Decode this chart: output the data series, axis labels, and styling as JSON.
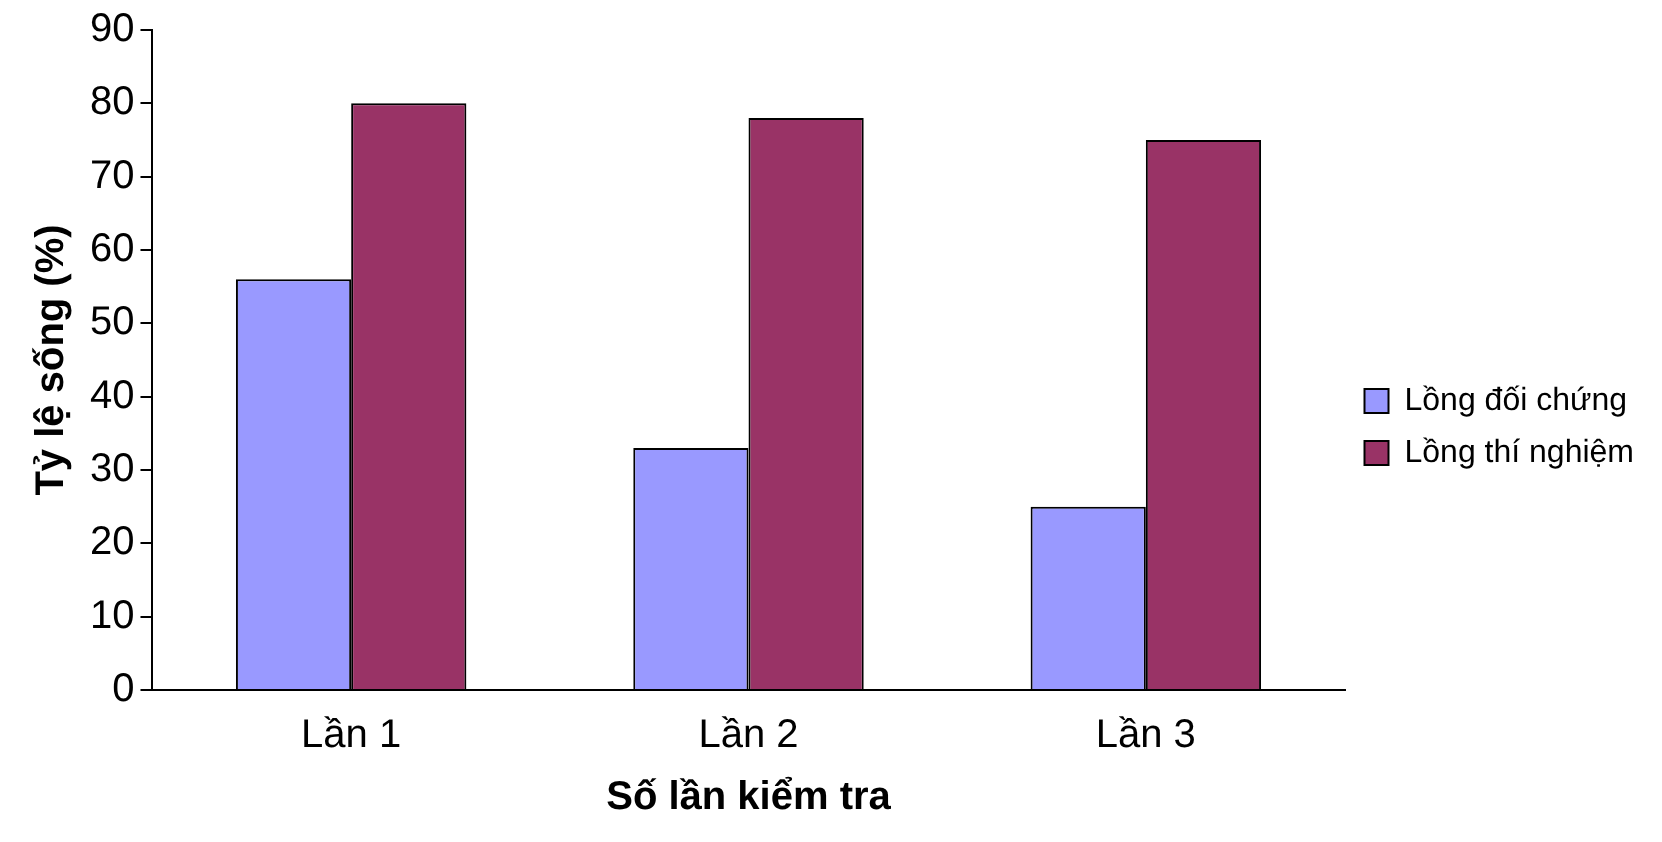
{
  "chart_data": {
    "type": "bar",
    "xlabel": "Số lần kiểm tra",
    "ylabel": "Tỷ lệ sống (%)",
    "categories": [
      "Lần 1",
      "Lần 2",
      "Lần 3"
    ],
    "series": [
      {
        "name": "Lồng đối chứng",
        "color": "#9999ff",
        "values": [
          56,
          33,
          25
        ]
      },
      {
        "name": "Lồng thí nghiệm",
        "color": "#993366",
        "values": [
          80,
          78,
          75
        ]
      }
    ],
    "ylim": [
      0,
      90
    ],
    "yticks": [
      0,
      10,
      20,
      30,
      40,
      50,
      60,
      70,
      80,
      90
    ],
    "grid": false,
    "legend": "right"
  }
}
